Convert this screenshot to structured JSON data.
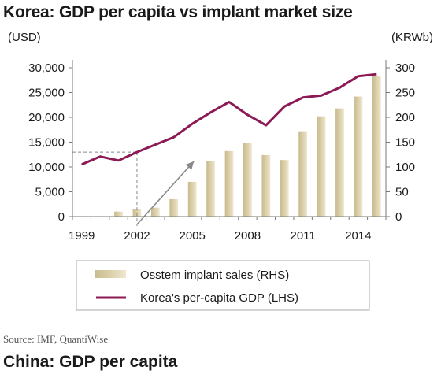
{
  "header": {
    "title": "Korea: GDP per capita vs implant market size"
  },
  "footer": {
    "source": "Source: IMF, QuantiWise",
    "next_section_title": "China: GDP per capita"
  },
  "colors": {
    "bar": "#ddd2ae",
    "line": "#8b1a55",
    "axis": "#777777",
    "annotation": "#888888"
  },
  "chart_data": {
    "type": "bar+line",
    "title": "Korea: GDP per capita vs implant market size",
    "left_unit": "(USD)",
    "right_unit": "(KRWb)",
    "x": [
      1999,
      2000,
      2001,
      2002,
      2003,
      2004,
      2005,
      2006,
      2007,
      2008,
      2009,
      2010,
      2011,
      2012,
      2013,
      2014,
      2015
    ],
    "x_tick_labels": [
      "1999",
      "2002",
      "2005",
      "2008",
      "2011",
      "2014"
    ],
    "x_tick_values": [
      1999,
      2002,
      2005,
      2008,
      2011,
      2014
    ],
    "left_axis": {
      "min": 0,
      "max": 30000,
      "ticks": [
        "0",
        "5,000",
        "10,000",
        "15,000",
        "20,000",
        "25,000",
        "30,000"
      ],
      "tick_values": [
        0,
        5000,
        10000,
        15000,
        20000,
        25000,
        30000
      ]
    },
    "right_axis": {
      "min": 0,
      "max": 300,
      "ticks": [
        "0",
        "50",
        "100",
        "150",
        "200",
        "250",
        "300"
      ],
      "tick_values": [
        0,
        50,
        100,
        150,
        200,
        250,
        300
      ]
    },
    "legend_position": "bottom",
    "series": [
      {
        "name": "Osstem implant sales (RHS)",
        "kind": "bar",
        "axis": "right",
        "values": [
          0,
          0,
          10,
          15,
          18,
          35,
          70,
          112,
          132,
          148,
          124,
          114,
          172,
          202,
          218,
          242,
          283
        ]
      },
      {
        "name": "Korea's per-capita GDP (LHS)",
        "kind": "line",
        "axis": "left",
        "values": [
          10500,
          12100,
          11300,
          13000,
          14500,
          16000,
          18700,
          21000,
          23100,
          20500,
          18400,
          22200,
          24000,
          24400,
          26000,
          28300,
          28700
        ]
      }
    ]
  }
}
